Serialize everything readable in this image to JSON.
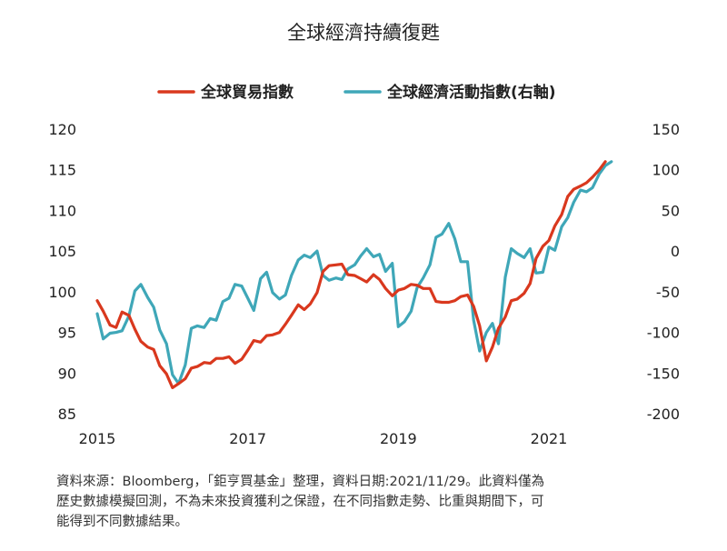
{
  "chart_data": {
    "type": "line",
    "title": "全球經濟持續復甦",
    "legend_position": "top",
    "grid": false,
    "x_ticks": [
      "2015",
      "2017",
      "2019",
      "2021"
    ],
    "xlim": [
      2015,
      2021.9
    ],
    "y_left": {
      "ticks": [
        "120",
        "115",
        "110",
        "105",
        "100",
        "95",
        "90",
        "85"
      ],
      "lim": [
        85,
        120
      ]
    },
    "y_right": {
      "ticks": [
        "150",
        "100",
        "50",
        "0",
        "-50",
        "-100",
        "-150",
        "-200"
      ],
      "lim": [
        -200,
        150
      ]
    },
    "series": [
      {
        "name": "全球貿易指數",
        "color": "#d9381e",
        "axis": "left",
        "x": [
          2015.0,
          2015.08,
          2015.17,
          2015.25,
          2015.33,
          2015.42,
          2015.5,
          2015.58,
          2015.67,
          2015.75,
          2015.83,
          2015.92,
          2016.0,
          2016.08,
          2016.17,
          2016.25,
          2016.33,
          2016.42,
          2016.5,
          2016.58,
          2016.67,
          2016.75,
          2016.83,
          2016.92,
          2017.0,
          2017.08,
          2017.17,
          2017.25,
          2017.33,
          2017.42,
          2017.5,
          2017.58,
          2017.67,
          2017.75,
          2017.83,
          2017.92,
          2018.0,
          2018.08,
          2018.17,
          2018.25,
          2018.33,
          2018.42,
          2018.5,
          2018.58,
          2018.67,
          2018.75,
          2018.83,
          2018.92,
          2019.0,
          2019.08,
          2019.17,
          2019.25,
          2019.33,
          2019.42,
          2019.5,
          2019.58,
          2019.67,
          2019.75,
          2019.83,
          2019.92,
          2020.0,
          2020.08,
          2020.17,
          2020.25,
          2020.33,
          2020.42,
          2020.5,
          2020.58,
          2020.67,
          2020.75,
          2020.83,
          2020.92,
          2021.0,
          2021.08,
          2021.17,
          2021.25,
          2021.33,
          2021.42,
          2021.5,
          2021.58,
          2021.67,
          2021.75
        ],
        "values": [
          98.9,
          97.6,
          95.9,
          95.6,
          97.5,
          97.1,
          95.4,
          93.9,
          93.2,
          92.9,
          90.9,
          89.9,
          88.2,
          88.7,
          89.3,
          90.6,
          90.8,
          91.3,
          91.2,
          91.8,
          91.8,
          92.0,
          91.2,
          91.7,
          92.8,
          94.0,
          93.8,
          94.6,
          94.7,
          95.0,
          96.0,
          97.1,
          98.4,
          97.8,
          98.5,
          99.9,
          102.5,
          103.2,
          103.3,
          103.4,
          102.1,
          102.0,
          101.6,
          101.2,
          102.1,
          101.5,
          100.4,
          99.5,
          100.2,
          100.4,
          100.9,
          100.8,
          100.4,
          100.4,
          98.8,
          98.7,
          98.7,
          98.9,
          99.4,
          99.6,
          98.2,
          95.8,
          91.5,
          93.2,
          95.5,
          96.9,
          98.9,
          99.1,
          99.8,
          101.0,
          104.1,
          105.6,
          106.3,
          108.1,
          109.5,
          111.7,
          112.6,
          113.0,
          113.4,
          114.1,
          115.0,
          116.0
        ]
      },
      {
        "name": "全球經濟活動指數(右軸)",
        "color": "#3fa7b8",
        "axis": "right",
        "x": [
          2015.0,
          2015.08,
          2015.17,
          2015.25,
          2015.33,
          2015.42,
          2015.5,
          2015.58,
          2015.67,
          2015.75,
          2015.83,
          2015.92,
          2016.0,
          2016.08,
          2016.17,
          2016.25,
          2016.33,
          2016.42,
          2016.5,
          2016.58,
          2016.67,
          2016.75,
          2016.83,
          2016.92,
          2017.0,
          2017.08,
          2017.17,
          2017.25,
          2017.33,
          2017.42,
          2017.5,
          2017.58,
          2017.67,
          2017.75,
          2017.83,
          2017.92,
          2018.0,
          2018.08,
          2018.17,
          2018.25,
          2018.33,
          2018.42,
          2018.5,
          2018.58,
          2018.67,
          2018.75,
          2018.83,
          2018.92,
          2019.0,
          2019.08,
          2019.17,
          2019.25,
          2019.33,
          2019.42,
          2019.5,
          2019.58,
          2019.67,
          2019.75,
          2019.83,
          2019.92,
          2020.0,
          2020.08,
          2020.17,
          2020.25,
          2020.33,
          2020.42,
          2020.5,
          2020.58,
          2020.67,
          2020.75,
          2020.83,
          2020.92,
          2021.0,
          2021.08,
          2021.17,
          2021.25,
          2021.33,
          2021.42,
          2021.5,
          2021.58,
          2021.67,
          2021.75,
          2021.83
        ],
        "values": [
          -77,
          -108,
          -101,
          -100,
          -98,
          -80,
          -49,
          -41,
          -57,
          -69,
          -97,
          -114,
          -152,
          -163,
          -140,
          -95,
          -92,
          -94,
          -83,
          -85,
          -62,
          -58,
          -41,
          -43,
          -58,
          -73,
          -34,
          -26,
          -51,
          -59,
          -54,
          -30,
          -11,
          -5,
          -8,
          0,
          -30,
          -36,
          -33,
          -35,
          -22,
          -17,
          -6,
          3,
          -7,
          -4,
          -25,
          -15,
          -93,
          -87,
          -74,
          -45,
          -33,
          -17,
          17,
          21,
          34,
          15,
          -13,
          -13,
          -85,
          -123,
          -100,
          -89,
          -114,
          -32,
          3,
          -3,
          -8,
          3,
          -27,
          -26,
          5,
          1,
          30,
          41,
          60,
          75,
          73,
          78,
          95,
          105,
          110
        ]
      }
    ]
  },
  "note": {
    "line1": "資料來源：Bloomberg，「鉅亨買基金」整理，資料日期:2021/11/29。此資料僅為",
    "line2": "歷史數據模擬回測，不為未來投資獲利之保證，在不同指數走勢、比重與期間下，可",
    "line3": "能得到不同數據結果。"
  }
}
